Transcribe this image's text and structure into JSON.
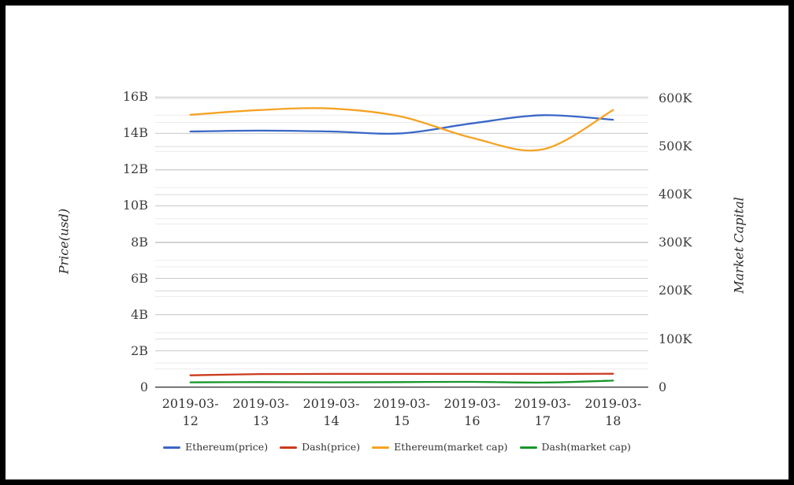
{
  "frame": {
    "border_color": "#000000",
    "background": "#ffffff"
  },
  "chart_data": {
    "type": "line",
    "smooth": true,
    "grid": true,
    "legend_position": "bottom",
    "x": [
      "2019-03-12",
      "2019-03-13",
      "2019-03-14",
      "2019-03-15",
      "2019-03-16",
      "2019-03-17",
      "2019-03-18"
    ],
    "series": [
      {
        "name": "Ethereum(price)",
        "axis": "left",
        "color": "#3a67c6",
        "values": [
          14.1,
          14.15,
          14.1,
          14.0,
          14.55,
          15.0,
          14.75
        ]
      },
      {
        "name": "Dash(price)",
        "axis": "left",
        "color": "#cb3a1d",
        "values": [
          0.65,
          0.72,
          0.73,
          0.73,
          0.73,
          0.73,
          0.74
        ]
      },
      {
        "name": "Ethereum(market cap)",
        "axis": "right",
        "color": "#f5a324",
        "values": [
          566,
          576,
          579,
          562,
          518,
          494,
          576
        ]
      },
      {
        "name": "Dash(market cap)",
        "axis": "right",
        "color": "#17972a",
        "values": [
          10,
          10.5,
          10,
          10.5,
          11,
          9.5,
          13.5
        ]
      }
    ],
    "left_axis": {
      "title": "Price(usd)",
      "unit": "B",
      "min": 0,
      "max": 16,
      "ticks": [
        "0",
        "2B",
        "4B",
        "6B",
        "8B",
        "10B",
        "12B",
        "14B",
        "16B"
      ],
      "minor_step": 1
    },
    "right_axis": {
      "title": "Market Capital",
      "unit": "K",
      "min": 0,
      "max": 600,
      "ticks": [
        "0",
        "100K",
        "200K",
        "300K",
        "400K",
        "500K",
        "600K"
      ],
      "minor_step": 50
    },
    "colors": {
      "major_grid_left": "#c9c9c9",
      "major_grid_right": "#d9d9d9",
      "minor_grid": "#ececec",
      "baseline": "#3a3a3a",
      "tick_text": "#3d3d3d"
    }
  }
}
